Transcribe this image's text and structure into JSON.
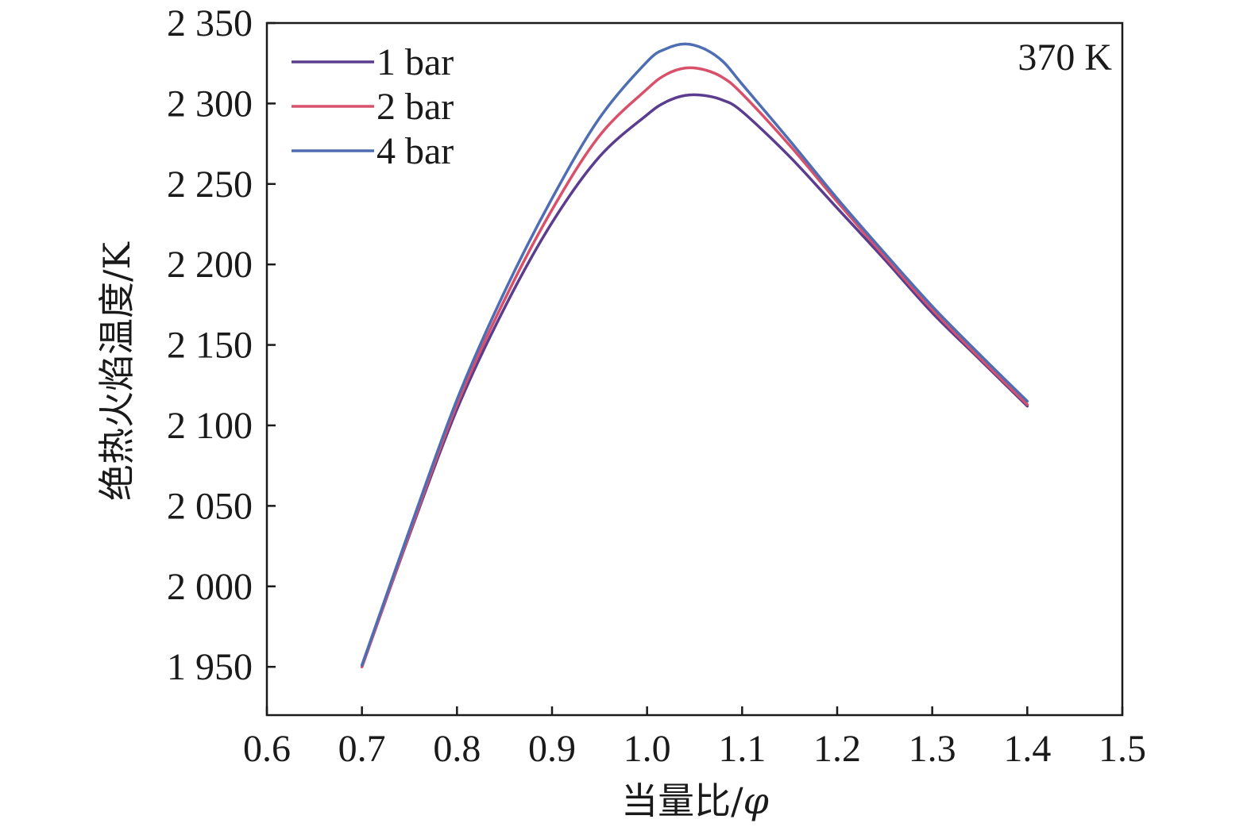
{
  "chart_data": {
    "type": "line",
    "xlabel": "当量比/φ",
    "ylabel": "绝热火焰温度/K",
    "annotation": "370 K",
    "xlim": [
      0.6,
      1.5
    ],
    "ylim": [
      1920,
      2350
    ],
    "xticks": [
      0.6,
      0.7,
      0.8,
      0.9,
      1.0,
      1.1,
      1.2,
      1.3,
      1.4,
      1.5
    ],
    "xtick_labels": [
      "0.6",
      "0.7",
      "0.8",
      "0.9",
      "1.0",
      "1.1",
      "1.2",
      "1.3",
      "1.4",
      "1.5"
    ],
    "yticks": [
      1950,
      2000,
      2050,
      2100,
      2150,
      2200,
      2250,
      2300,
      2350
    ],
    "ytick_labels": [
      "1 950",
      "2 000",
      "2 050",
      "2 100",
      "2 150",
      "2 200",
      "2 250",
      "2 300",
      "2 350"
    ],
    "legend_position": "top-left",
    "grid": false,
    "x": [
      0.7,
      0.75,
      0.8,
      0.85,
      0.9,
      0.95,
      1.0,
      1.02,
      1.04,
      1.06,
      1.08,
      1.1,
      1.15,
      1.2,
      1.25,
      1.3,
      1.35,
      1.4
    ],
    "series": [
      {
        "name": "1 bar",
        "color": "#5b3d8f",
        "values": [
          1950,
          2032,
          2110,
          2173,
          2226,
          2267,
          2293,
          2301,
          2305,
          2305,
          2302,
          2295,
          2267,
          2235,
          2203,
          2170,
          2141,
          2112
        ]
      },
      {
        "name": "2 bar",
        "color": "#d9506a",
        "values": [
          1950,
          2033,
          2113,
          2178,
          2234,
          2280,
          2309,
          2318,
          2322,
          2321,
          2316,
          2306,
          2274,
          2239,
          2205,
          2172,
          2142,
          2113
        ]
      },
      {
        "name": "4 bar",
        "color": "#4e6db3",
        "values": [
          1951,
          2035,
          2116,
          2183,
          2241,
          2291,
          2326,
          2334,
          2337,
          2334,
          2326,
          2312,
          2277,
          2241,
          2207,
          2174,
          2144,
          2115
        ]
      }
    ]
  }
}
